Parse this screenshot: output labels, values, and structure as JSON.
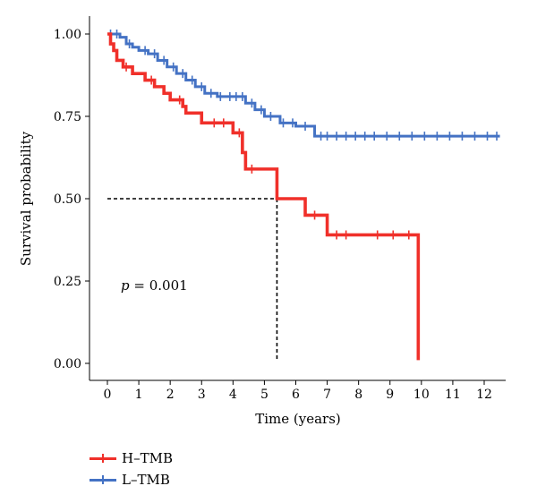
{
  "chart_data": {
    "type": "line",
    "xlabel": "Time (years)",
    "ylabel": "Survival probability",
    "xlim": [
      0,
      12
    ],
    "ylim": [
      0,
      1
    ],
    "x_ticks": [
      "0",
      "1",
      "2",
      "3",
      "4",
      "5",
      "6",
      "7",
      "8",
      "9",
      "10",
      "11",
      "12"
    ],
    "y_ticks": [
      "0.00",
      "0.25",
      "0.50",
      "0.75",
      "1.00"
    ],
    "annotation": {
      "p_symbol": "p",
      "p_text": " = 0.001"
    },
    "median_survival": {
      "y": 0.5,
      "x": 5.4
    },
    "series": [
      {
        "name": "H–TMB",
        "color": "#f0302a",
        "steps": [
          [
            0,
            1.0
          ],
          [
            0.1,
            0.97
          ],
          [
            0.2,
            0.95
          ],
          [
            0.3,
            0.92
          ],
          [
            0.5,
            0.9
          ],
          [
            0.8,
            0.88
          ],
          [
            1.2,
            0.86
          ],
          [
            1.5,
            0.84
          ],
          [
            1.8,
            0.82
          ],
          [
            2.0,
            0.8
          ],
          [
            2.4,
            0.78
          ],
          [
            2.5,
            0.76
          ],
          [
            3.0,
            0.73
          ],
          [
            4.0,
            0.7
          ],
          [
            4.3,
            0.64
          ],
          [
            4.4,
            0.59
          ],
          [
            5.4,
            0.5
          ],
          [
            6.3,
            0.45
          ],
          [
            7.0,
            0.39
          ],
          [
            9.9,
            0.01
          ]
        ],
        "end_x": 9.9,
        "censor_x": [
          0.6,
          1.4,
          2.3,
          3.4,
          3.7,
          4.2,
          4.6,
          6.6,
          7.3,
          7.6,
          8.6,
          9.1,
          9.6
        ]
      },
      {
        "name": "L–TMB",
        "color": "#4472c4",
        "steps": [
          [
            0,
            1.0
          ],
          [
            0.4,
            0.99
          ],
          [
            0.6,
            0.97
          ],
          [
            0.8,
            0.96
          ],
          [
            1.0,
            0.95
          ],
          [
            1.3,
            0.94
          ],
          [
            1.6,
            0.92
          ],
          [
            1.9,
            0.9
          ],
          [
            2.2,
            0.88
          ],
          [
            2.5,
            0.86
          ],
          [
            2.8,
            0.84
          ],
          [
            3.1,
            0.82
          ],
          [
            3.5,
            0.81
          ],
          [
            4.4,
            0.79
          ],
          [
            4.7,
            0.77
          ],
          [
            5.0,
            0.75
          ],
          [
            5.5,
            0.73
          ],
          [
            6.0,
            0.72
          ],
          [
            6.6,
            0.69
          ]
        ],
        "end_x": 12.5,
        "censor_x": [
          0.1,
          0.3,
          0.7,
          1.2,
          1.5,
          1.8,
          2.1,
          2.4,
          2.7,
          3.0,
          3.3,
          3.6,
          3.9,
          4.1,
          4.3,
          4.6,
          4.9,
          5.2,
          5.6,
          5.9,
          6.3,
          6.8,
          7.0,
          7.3,
          7.6,
          7.9,
          8.2,
          8.5,
          8.9,
          9.3,
          9.7,
          10.1,
          10.5,
          10.9,
          11.3,
          11.7,
          12.1,
          12.4
        ]
      }
    ],
    "legend_position": "bottom-left"
  }
}
